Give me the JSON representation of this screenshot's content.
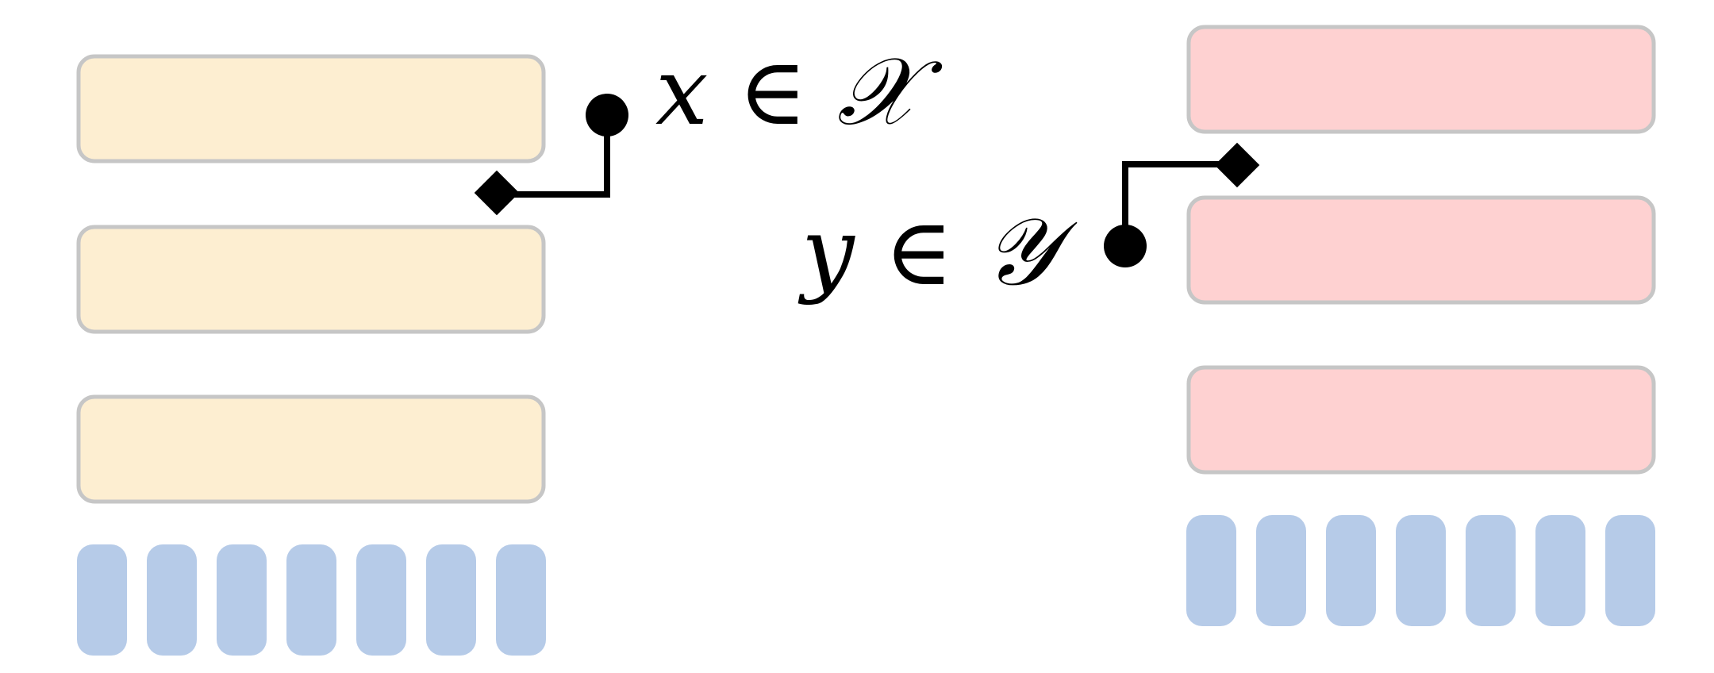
{
  "colors": {
    "left_block_fill": "#fdeed1",
    "right_block_fill": "#fed1d1",
    "block_border": "#c6c6c6",
    "token_fill": "#b6cbe8",
    "connector": "#000000",
    "background": "#ffffff"
  },
  "left_stack": {
    "blocks": [
      {},
      {},
      {}
    ],
    "token_count": 7
  },
  "right_stack": {
    "blocks": [
      {},
      {},
      {}
    ],
    "token_count": 7
  },
  "labels": {
    "x_label": "x ∈ 𝒳",
    "y_label": "y ∈ 𝒴"
  },
  "connectors": [
    {
      "name": "x-connector",
      "start_marker": "diamond",
      "end_marker": "dot"
    },
    {
      "name": "y-connector",
      "start_marker": "diamond",
      "end_marker": "dot"
    }
  ]
}
